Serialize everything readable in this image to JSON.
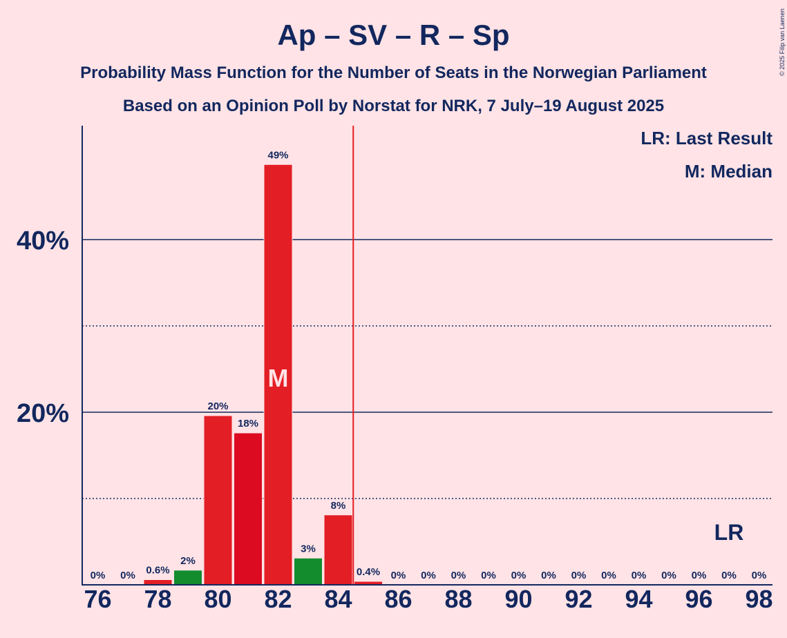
{
  "header": {
    "title": "Ap – SV – R – Sp",
    "subtitle1": "Probability Mass Function for the Number of Seats in the Norwegian Parliament",
    "subtitle2": "Based on an Opinion Poll by Norstat for NRK, 7 July–19 August 2025"
  },
  "copyright": "© 2025 Filip van Laenen",
  "legend": {
    "lr": "LR: Last Result",
    "median": "M: Median"
  },
  "colors": {
    "background": "#FFE3E6",
    "bar_red": "#E31E24",
    "bar_dark_red": "#DC0B22",
    "bar_green": "#138C2E",
    "axis": "#12275E",
    "majority_line": "#E31E24"
  },
  "chart_data": {
    "type": "bar",
    "x_ticks": [
      "76",
      "78",
      "80",
      "82",
      "84",
      "86",
      "88",
      "90",
      "92",
      "94",
      "96",
      "98"
    ],
    "y_ticks": [
      "20%",
      "40%"
    ],
    "ylim": [
      0,
      53
    ],
    "xlim": [
      75.5,
      98.5
    ],
    "grid": "dotted at 10% steps, solid at 20% steps",
    "majority_line_x": 85,
    "median_seat": 82,
    "median_label": "M",
    "last_result_seat": 97,
    "last_result_label": "LR",
    "bars": [
      {
        "seat": 76,
        "value": 0,
        "label": "0%",
        "color": "red"
      },
      {
        "seat": 77,
        "value": 0,
        "label": "0%",
        "color": "red"
      },
      {
        "seat": 78,
        "value": 0.6,
        "label": "0.6%",
        "color": "red"
      },
      {
        "seat": 79,
        "value": 1.7,
        "label": "2%",
        "color": "green"
      },
      {
        "seat": 80,
        "value": 19.6,
        "label": "20%",
        "color": "red"
      },
      {
        "seat": 81,
        "value": 17.6,
        "label": "18%",
        "color": "darkred"
      },
      {
        "seat": 82,
        "value": 48.7,
        "label": "49%",
        "color": "red"
      },
      {
        "seat": 83,
        "value": 3.1,
        "label": "3%",
        "color": "green"
      },
      {
        "seat": 84,
        "value": 8.1,
        "label": "8%",
        "color": "red"
      },
      {
        "seat": 85,
        "value": 0.4,
        "label": "0.4%",
        "color": "red"
      },
      {
        "seat": 86,
        "value": 0,
        "label": "0%",
        "color": "red"
      },
      {
        "seat": 87,
        "value": 0,
        "label": "0%",
        "color": "red"
      },
      {
        "seat": 88,
        "value": 0,
        "label": "0%",
        "color": "red"
      },
      {
        "seat": 89,
        "value": 0,
        "label": "0%",
        "color": "red"
      },
      {
        "seat": 90,
        "value": 0,
        "label": "0%",
        "color": "red"
      },
      {
        "seat": 91,
        "value": 0,
        "label": "0%",
        "color": "red"
      },
      {
        "seat": 92,
        "value": 0,
        "label": "0%",
        "color": "red"
      },
      {
        "seat": 93,
        "value": 0,
        "label": "0%",
        "color": "red"
      },
      {
        "seat": 94,
        "value": 0,
        "label": "0%",
        "color": "red"
      },
      {
        "seat": 95,
        "value": 0,
        "label": "0%",
        "color": "red"
      },
      {
        "seat": 96,
        "value": 0,
        "label": "0%",
        "color": "red"
      },
      {
        "seat": 97,
        "value": 0,
        "label": "0%",
        "color": "red"
      },
      {
        "seat": 98,
        "value": 0,
        "label": "0%",
        "color": "red"
      }
    ]
  }
}
